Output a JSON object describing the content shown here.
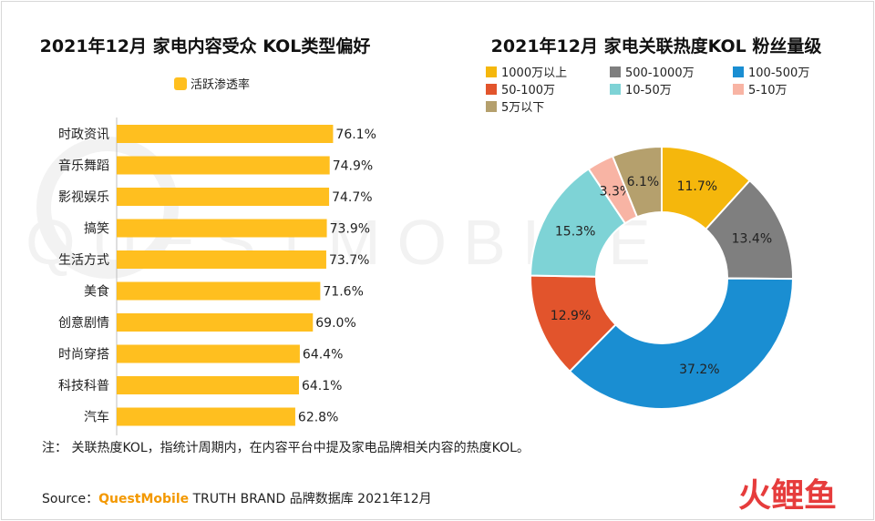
{
  "chart_data": [
    {
      "type": "bar",
      "orientation": "horizontal",
      "title": "2021年12月 家电内容受众 KOL类型偏好",
      "legend_position": "top",
      "categories": [
        "时政资讯",
        "音乐舞蹈",
        "影视娱乐",
        "搞笑",
        "生活方式",
        "美食",
        "创意剧情",
        "时尚穿搭",
        "科技科普",
        "汽车"
      ],
      "series": [
        {
          "name": "活跃渗透率",
          "color": "#ffbf1f",
          "values": [
            76.1,
            74.9,
            74.7,
            73.9,
            73.7,
            71.6,
            69.0,
            64.4,
            64.1,
            62.8
          ],
          "labels": [
            "76.1%",
            "74.9%",
            "74.7%",
            "73.9%",
            "73.7%",
            "71.6%",
            "69.0%",
            "64.4%",
            "64.1%",
            "62.8%"
          ]
        }
      ],
      "xlim": [
        0,
        100
      ],
      "grid": false
    },
    {
      "type": "pie",
      "donut": true,
      "title": "2021年12月 家电关联热度KOL 粉丝量级",
      "legend_position": "top",
      "categories": [
        "1000万以上",
        "500-1000万",
        "100-500万",
        "50-100万",
        "10-50万",
        "5-10万",
        "5万以下"
      ],
      "values": [
        11.7,
        13.4,
        37.2,
        12.9,
        15.3,
        3.3,
        6.1
      ],
      "labels": [
        "11.7%",
        "13.4%",
        "37.2%",
        "12.9%",
        "15.3%",
        "3.3%",
        "6.1%"
      ],
      "colors": [
        "#f5b70c",
        "#7f7f7f",
        "#1a8ed2",
        "#e2542c",
        "#7ed3d6",
        "#f8b4a4",
        "#b5a06d"
      ]
    }
  ],
  "footer": {
    "note": "注：  关联热度KOL，指统计周期内，在内容平台中提及家电品牌相关内容的热度KOL。",
    "source_prefix": "Source：",
    "source_brand": "QuestMobile",
    "source_suffix": " TRUTH BRAND 品牌数据库 2021年12月",
    "brand_color": "#f39800"
  },
  "watermark": {
    "text": "QUESTMOBILE"
  },
  "corner_logo": {
    "text": "火鲤鱼",
    "color": "#e63c3c"
  }
}
